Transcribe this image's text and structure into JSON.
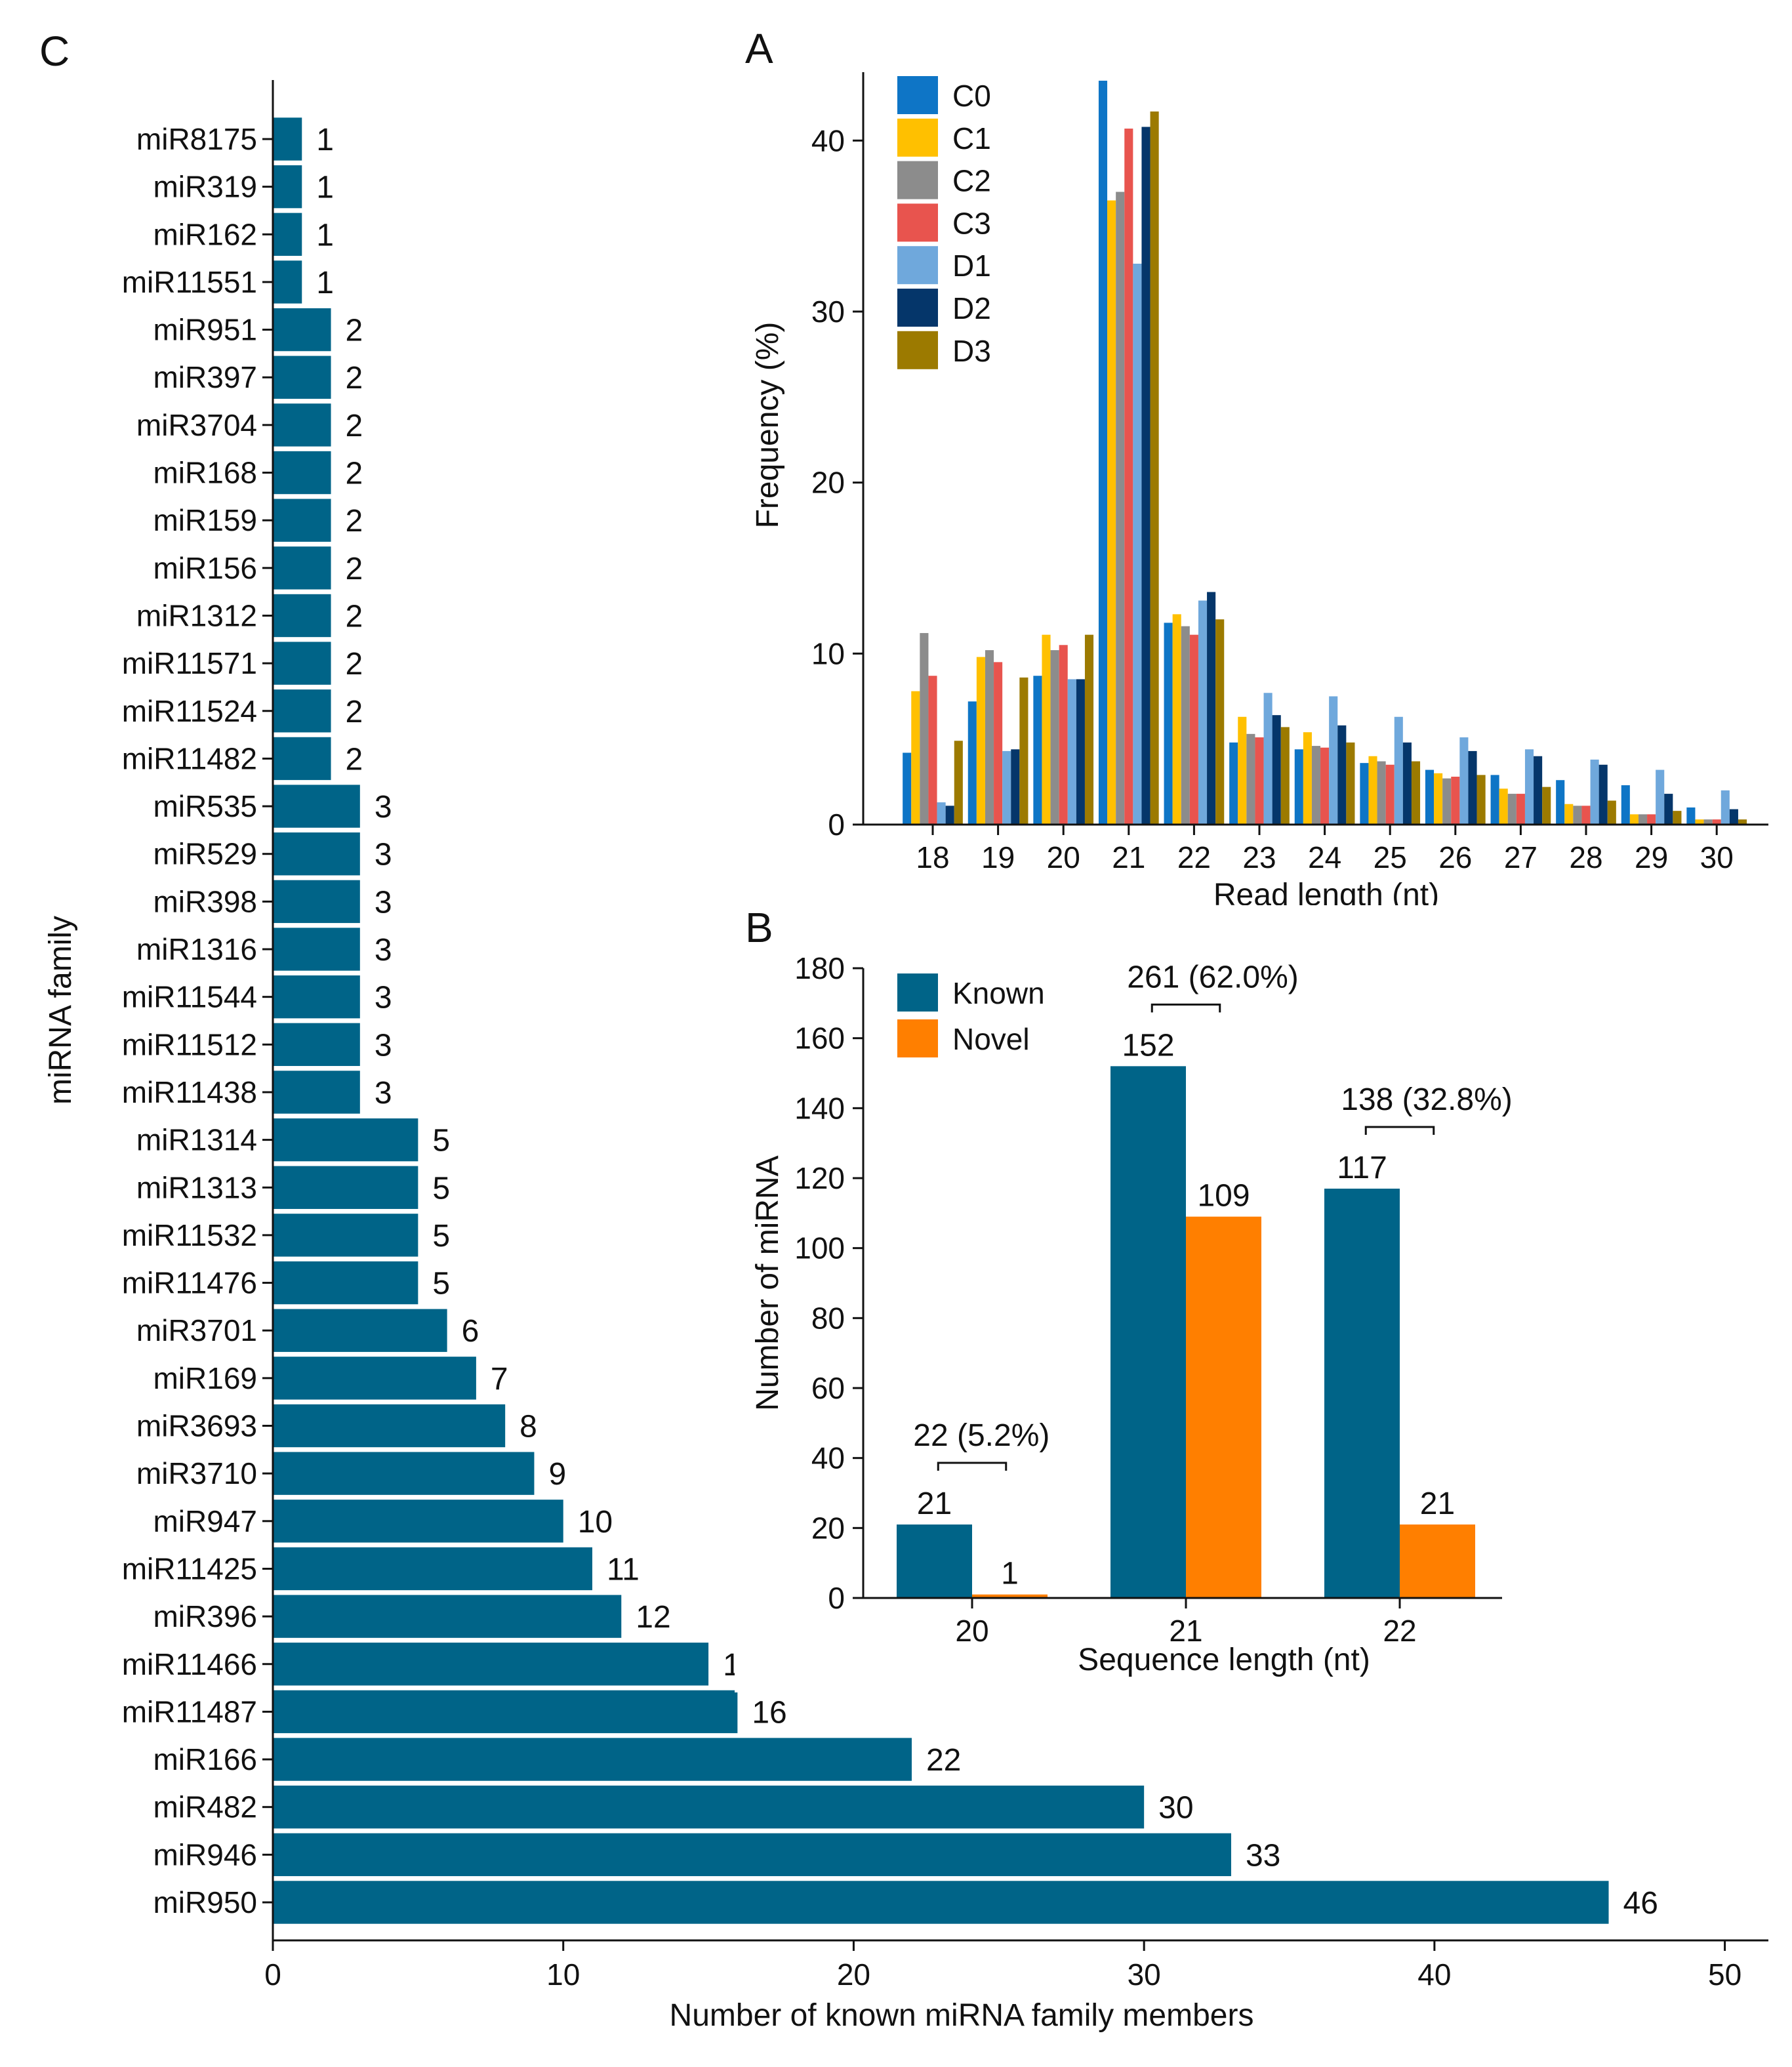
{
  "chart_data": [
    {
      "id": "A",
      "panel_label": "A",
      "type": "bar",
      "xlabel": "Read length (nt)",
      "ylabel": "Frequency (%)",
      "ylim": [
        0,
        44
      ],
      "yticks": [
        0,
        10,
        20,
        30,
        40
      ],
      "categories": [
        "18",
        "19",
        "20",
        "21",
        "22",
        "23",
        "24",
        "25",
        "26",
        "27",
        "28",
        "29",
        "30"
      ],
      "legend_position": "top-left",
      "series": [
        {
          "name": "C0",
          "color": "#0E75C6",
          "values": [
            4.2,
            7.2,
            8.7,
            43.5,
            11.8,
            4.8,
            4.4,
            3.6,
            3.2,
            2.9,
            2.6,
            2.3,
            1.0
          ]
        },
        {
          "name": "C1",
          "color": "#FFC000",
          "values": [
            7.8,
            9.8,
            11.1,
            36.5,
            12.3,
            6.3,
            5.4,
            4.0,
            3.0,
            2.1,
            1.2,
            0.6,
            0.3
          ]
        },
        {
          "name": "C2",
          "color": "#8C8C8C",
          "values": [
            11.2,
            10.2,
            10.2,
            37.0,
            11.6,
            5.3,
            4.6,
            3.7,
            2.7,
            1.8,
            1.1,
            0.6,
            0.3
          ]
        },
        {
          "name": "C3",
          "color": "#E8544E",
          "values": [
            8.7,
            9.5,
            10.5,
            40.7,
            11.1,
            5.1,
            4.5,
            3.5,
            2.8,
            1.8,
            1.1,
            0.6,
            0.3
          ]
        },
        {
          "name": "D1",
          "color": "#6FA8DC",
          "values": [
            1.3,
            4.3,
            8.5,
            32.8,
            13.1,
            7.7,
            7.5,
            6.3,
            5.1,
            4.4,
            3.8,
            3.2,
            2.0
          ]
        },
        {
          "name": "D2",
          "color": "#05366A",
          "values": [
            1.1,
            4.4,
            8.5,
            40.8,
            13.6,
            6.4,
            5.8,
            4.8,
            4.3,
            4.0,
            3.5,
            1.8,
            0.9
          ]
        },
        {
          "name": "D3",
          "color": "#9C7A00",
          "values": [
            4.9,
            8.6,
            11.1,
            41.7,
            12.0,
            5.7,
            4.8,
            3.7,
            2.9,
            2.2,
            1.4,
            0.8,
            0.3
          ]
        }
      ]
    },
    {
      "id": "B",
      "panel_label": "B",
      "type": "bar",
      "xlabel": "Sequence length (nt)",
      "ylabel": "Number of miRNA",
      "ylim": [
        0,
        180
      ],
      "yticks": [
        0,
        20,
        40,
        60,
        80,
        100,
        120,
        140,
        160,
        180
      ],
      "categories": [
        "20",
        "21",
        "22"
      ],
      "legend_position": "top-left",
      "series": [
        {
          "name": "Known",
          "color": "#006488",
          "values": [
            21,
            152,
            117
          ],
          "labels": [
            "21",
            "152",
            "117"
          ]
        },
        {
          "name": "Novel",
          "color": "#FF7F00",
          "values": [
            1,
            109,
            21
          ],
          "labels": [
            "1",
            "109",
            "21"
          ]
        }
      ],
      "annotations": [
        "22 (5.2%)",
        "261 (62.0%)",
        "138 (32.8%)"
      ]
    },
    {
      "id": "C",
      "panel_label": "C",
      "type": "bar",
      "orientation": "horizontal",
      "xlabel": "Number of known miRNA family members",
      "ylabel": "miRNA family",
      "xlim": [
        0,
        51.5
      ],
      "xticks": [
        0,
        10,
        20,
        30,
        40,
        50
      ],
      "color": "#006488",
      "categories": [
        "miR8175",
        "miR319",
        "miR162",
        "miR11551",
        "miR951",
        "miR397",
        "miR3704",
        "miR168",
        "miR159",
        "miR156",
        "miR1312",
        "miR11571",
        "miR11524",
        "miR11482",
        "miR535",
        "miR529",
        "miR398",
        "miR1316",
        "miR11544",
        "miR11512",
        "miR11438",
        "miR1314",
        "miR1313",
        "miR11532",
        "miR11476",
        "miR3701",
        "miR169",
        "miR3693",
        "miR3710",
        "miR947",
        "miR11425",
        "miR396",
        "miR11466",
        "miR11487",
        "miR166",
        "miR482",
        "miR946",
        "miR950"
      ],
      "values": [
        1,
        1,
        1,
        1,
        2,
        2,
        2,
        2,
        2,
        2,
        2,
        2,
        2,
        2,
        3,
        3,
        3,
        3,
        3,
        3,
        3,
        5,
        5,
        5,
        5,
        6,
        7,
        8,
        9,
        10,
        11,
        12,
        15,
        16,
        22,
        30,
        33,
        46
      ]
    }
  ]
}
